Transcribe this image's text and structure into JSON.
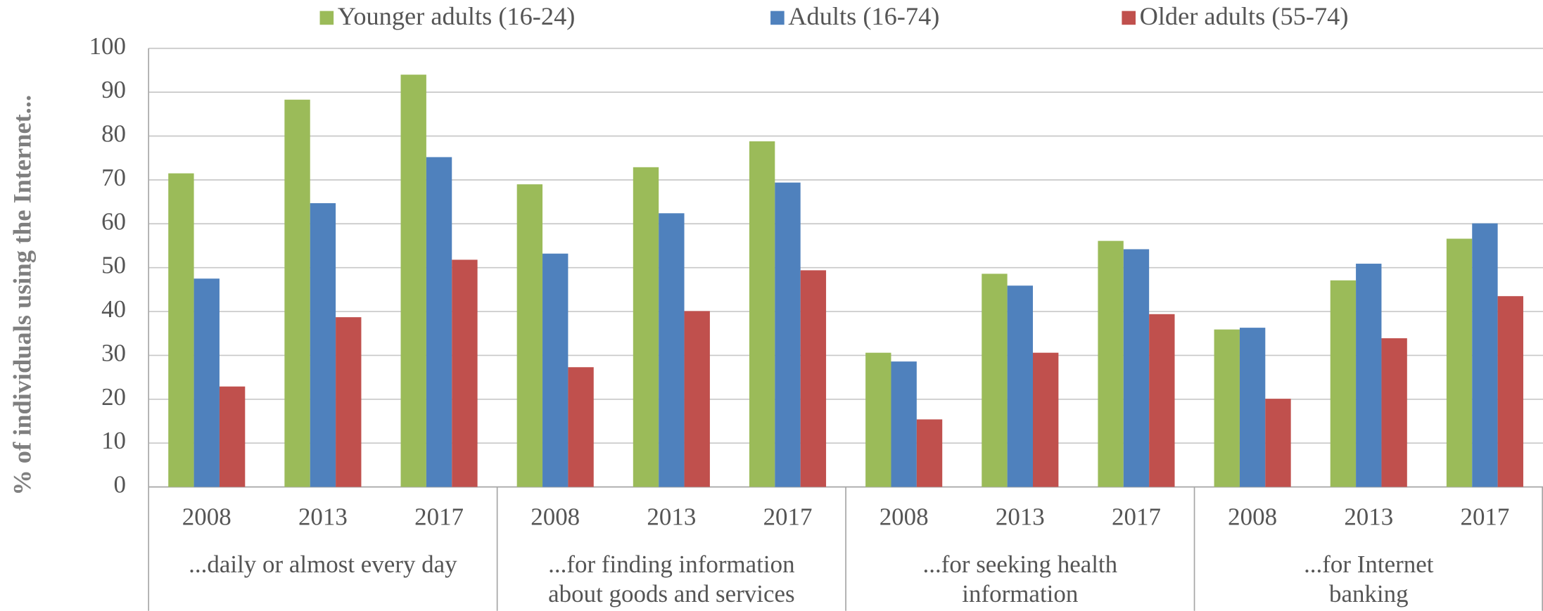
{
  "chart_data": {
    "type": "bar",
    "y_label": "% of individuals using the Internet...",
    "categories": [
      "2008",
      "2013",
      "2017",
      "2008",
      "2013",
      "2017",
      "2008",
      "2013",
      "2017",
      "2008",
      "2013",
      "2017"
    ],
    "groups": [
      {
        "label": [
          "...daily or almost every day"
        ]
      },
      {
        "label": [
          "...for finding information",
          "about goods and services"
        ]
      },
      {
        "label": [
          "...for seeking health",
          "information"
        ]
      },
      {
        "label": [
          "...for Internet",
          "banking"
        ]
      }
    ],
    "series": [
      {
        "name": "Younger adults (16-24)",
        "color": "#9bbb59",
        "values": [
          71.5,
          88.3,
          94,
          69,
          72.9,
          78.8,
          30.6,
          48.6,
          56.1,
          35.9,
          47.1,
          56.6
        ]
      },
      {
        "name": "Adults (16-74)",
        "color": "#4f81bd",
        "values": [
          47.5,
          64.7,
          75.2,
          53.2,
          62.4,
          69.4,
          28.6,
          45.9,
          54.2,
          36.3,
          50.9,
          60.1
        ]
      },
      {
        "name": "Older adults (55-74)",
        "color": "#c0504d",
        "values": [
          22.9,
          38.7,
          51.8,
          27.3,
          40.1,
          49.4,
          15.4,
          30.6,
          39.4,
          20.1,
          33.9,
          43.5
        ]
      }
    ],
    "ylim": [
      0,
      100
    ],
    "yticks": [
      0,
      10,
      20,
      30,
      40,
      50,
      60,
      70,
      80,
      90,
      100
    ],
    "grid": true,
    "legend": "top"
  }
}
